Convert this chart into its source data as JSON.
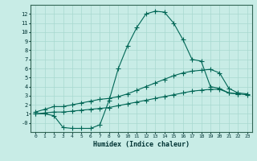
{
  "background_color": "#c8ece6",
  "grid_color": "#a8d8d0",
  "line_color": "#006655",
  "xlabel": "Humidex (Indice chaleur)",
  "x_values": [
    0,
    1,
    2,
    3,
    4,
    5,
    6,
    7,
    8,
    9,
    10,
    11,
    12,
    13,
    14,
    15,
    16,
    17,
    18,
    19,
    20,
    21,
    22,
    23
  ],
  "line1": [
    1.0,
    1.0,
    0.8,
    -0.5,
    -0.6,
    -0.6,
    -0.6,
    -0.2,
    2.5,
    6.0,
    8.5,
    10.5,
    12.0,
    12.3,
    12.2,
    11.0,
    9.2,
    7.0,
    6.8,
    4.0,
    3.8,
    3.3,
    3.2,
    null
  ],
  "line2": [
    1.2,
    1.5,
    1.8,
    1.8,
    2.0,
    2.2,
    2.4,
    2.6,
    2.7,
    2.9,
    3.2,
    3.6,
    4.0,
    4.4,
    4.8,
    5.2,
    5.5,
    5.7,
    5.8,
    5.9,
    5.5,
    3.8,
    3.3,
    3.2
  ],
  "line3": [
    1.0,
    1.1,
    1.2,
    1.2,
    1.3,
    1.4,
    1.5,
    1.6,
    1.7,
    1.9,
    2.1,
    2.3,
    2.5,
    2.7,
    2.9,
    3.1,
    3.3,
    3.5,
    3.6,
    3.7,
    3.7,
    3.3,
    3.2,
    3.1
  ],
  "ylim": [
    -1.0,
    13.0
  ],
  "xlim": [
    -0.5,
    23.5
  ],
  "yticks": [
    0,
    1,
    2,
    3,
    4,
    5,
    6,
    7,
    8,
    9,
    10,
    11,
    12
  ],
  "xticks": [
    0,
    1,
    2,
    3,
    4,
    5,
    6,
    7,
    8,
    9,
    10,
    11,
    12,
    13,
    14,
    15,
    16,
    17,
    18,
    19,
    20,
    21,
    22,
    23
  ]
}
